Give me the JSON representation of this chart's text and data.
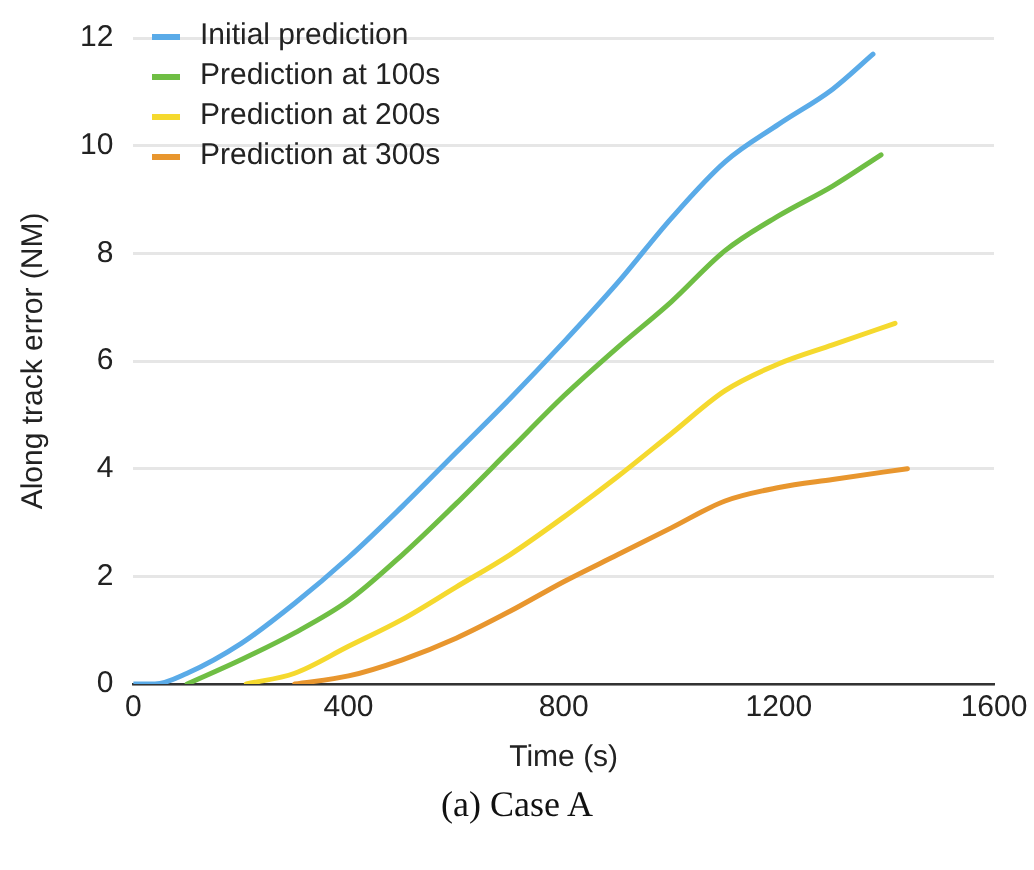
{
  "chart_data": {
    "type": "line",
    "xlabel": "Time (s)",
    "ylabel": "Along track error (NM)",
    "annotations": [
      "(a) Case A"
    ],
    "xlim": [
      0,
      1600
    ],
    "xticks": [
      0,
      400,
      800,
      1200,
      1600
    ],
    "ylim": [
      0,
      12
    ],
    "yticks": [
      0,
      2,
      4,
      6,
      8,
      10,
      12
    ],
    "grid": "y",
    "legend": "top left",
    "marker": "none",
    "line_style": "solid",
    "series": [
      {
        "name": "Initial prediction",
        "color": "#5aabe8",
        "x": [
          0,
          40,
          100,
          200,
          300,
          400,
          500,
          600,
          700,
          800,
          900,
          1000,
          1100,
          1200,
          1300,
          1375
        ],
        "values": [
          0,
          0,
          0.2,
          0.75,
          1.5,
          2.35,
          3.3,
          4.3,
          5.3,
          6.35,
          7.45,
          8.65,
          9.7,
          10.4,
          11.05,
          11.7
        ]
      },
      {
        "name": "Prediction at 100s",
        "color": "#6fbe44",
        "x": [
          100,
          200,
          300,
          400,
          500,
          600,
          700,
          800,
          900,
          1000,
          1100,
          1200,
          1300,
          1390
        ],
        "values": [
          0,
          0.45,
          0.95,
          1.55,
          2.4,
          3.35,
          4.35,
          5.35,
          6.25,
          7.1,
          8.05,
          8.7,
          9.25,
          9.83
        ]
      },
      {
        "name": "Prediction at 200s",
        "color": "#f5d92e",
        "x": [
          210,
          300,
          400,
          500,
          600,
          700,
          800,
          900,
          1000,
          1100,
          1200,
          1300,
          1416
        ],
        "values": [
          0,
          0.2,
          0.7,
          1.2,
          1.8,
          2.4,
          3.1,
          3.85,
          4.65,
          5.45,
          5.95,
          6.3,
          6.7
        ]
      },
      {
        "name": "Prediction at 300s",
        "color": "#e8962e",
        "x": [
          300,
          400,
          500,
          600,
          700,
          800,
          900,
          1000,
          1100,
          1200,
          1300,
          1439
        ],
        "values": [
          0,
          0.15,
          0.45,
          0.85,
          1.35,
          1.9,
          2.4,
          2.9,
          3.4,
          3.65,
          3.8,
          4.0
        ]
      }
    ]
  }
}
